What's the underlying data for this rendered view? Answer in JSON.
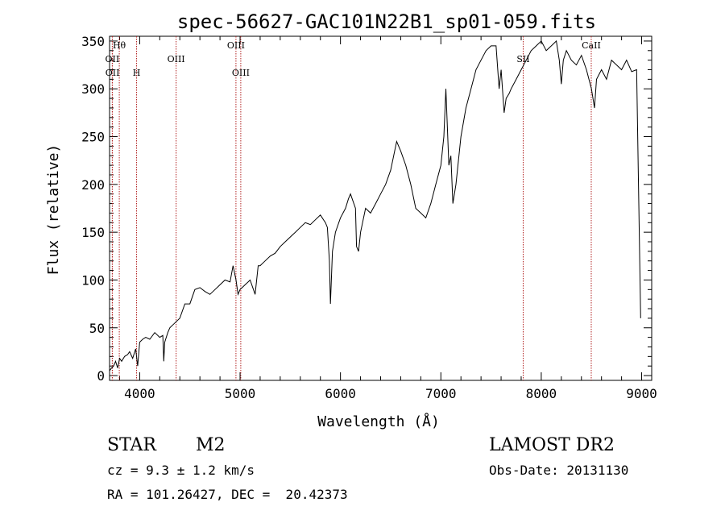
{
  "chart_data": {
    "type": "line",
    "title": "spec-56627-GAC101N22B1_sp01-059.fits",
    "xlabel": "Wavelength (Å)",
    "ylabel": "Flux (relative)",
    "xlim": [
      3700,
      9100
    ],
    "ylim": [
      -5,
      355
    ],
    "x_ticks": [
      4000,
      5000,
      6000,
      7000,
      8000,
      9000
    ],
    "y_ticks": [
      0,
      50,
      100,
      150,
      200,
      250,
      300,
      350
    ],
    "grid": false,
    "line_color": "#000000",
    "marker_color": "#b22222",
    "series": [
      {
        "x": [
          3700,
          3720,
          3740,
          3760,
          3780,
          3800,
          3820,
          3850,
          3880,
          3900,
          3930,
          3960,
          3980,
          4000,
          4030,
          4060,
          4100,
          4150,
          4200,
          4230,
          4240,
          4250,
          4280,
          4300,
          4350,
          4400,
          4450,
          4500,
          4550,
          4600,
          4650,
          4700,
          4750,
          4800,
          4850,
          4900,
          4930,
          4960,
          4980,
          5000,
          5050,
          5100,
          5150,
          5180,
          5200,
          5250,
          5300,
          5350,
          5400,
          5450,
          5500,
          5550,
          5600,
          5650,
          5700,
          5750,
          5800,
          5850,
          5870,
          5890,
          5900,
          5920,
          5950,
          6000,
          6050,
          6080,
          6100,
          6150,
          6160,
          6180,
          6200,
          6250,
          6300,
          6350,
          6400,
          6450,
          6500,
          6530,
          6560,
          6580,
          6600,
          6650,
          6700,
          6750,
          6800,
          6850,
          6900,
          6950,
          7000,
          7030,
          7050,
          7080,
          7100,
          7120,
          7150,
          7200,
          7250,
          7300,
          7350,
          7400,
          7450,
          7500,
          7550,
          7580,
          7600,
          7630,
          7650,
          7680,
          7700,
          7750,
          7800,
          7850,
          7900,
          7950,
          8000,
          8050,
          8100,
          8150,
          8180,
          8200,
          8220,
          8250,
          8300,
          8350,
          8400,
          8450,
          8500,
          8530,
          8550,
          8600,
          8650,
          8700,
          8750,
          8800,
          8850,
          8900,
          8950,
          8990
        ],
        "y": [
          5,
          8,
          10,
          15,
          8,
          18,
          15,
          20,
          22,
          25,
          18,
          28,
          10,
          35,
          38,
          40,
          38,
          45,
          40,
          42,
          15,
          35,
          45,
          50,
          55,
          60,
          75,
          75,
          90,
          92,
          88,
          85,
          90,
          95,
          100,
          98,
          115,
          100,
          85,
          90,
          95,
          100,
          85,
          115,
          115,
          120,
          125,
          128,
          135,
          140,
          145,
          150,
          155,
          160,
          158,
          163,
          168,
          160,
          155,
          120,
          75,
          130,
          150,
          165,
          175,
          185,
          190,
          175,
          135,
          130,
          150,
          175,
          170,
          180,
          190,
          200,
          215,
          230,
          245,
          240,
          235,
          220,
          200,
          175,
          170,
          165,
          180,
          200,
          220,
          250,
          300,
          220,
          230,
          180,
          200,
          250,
          280,
          300,
          320,
          330,
          340,
          345,
          345,
          300,
          320,
          275,
          290,
          295,
          300,
          310,
          320,
          330,
          340,
          345,
          350,
          340,
          345,
          350,
          330,
          305,
          330,
          340,
          330,
          325,
          335,
          320,
          300,
          280,
          310,
          320,
          310,
          330,
          325,
          320,
          330,
          318,
          320,
          60
        ]
      }
    ],
    "line_markers": [
      {
        "label": "Hθ",
        "x": 3797,
        "row": 0
      },
      {
        "label": "OII",
        "x": 3727,
        "row": 1
      },
      {
        "label": "OII",
        "x": 3729,
        "row": 2
      },
      {
        "label": "H",
        "x": 3969,
        "row": 2
      },
      {
        "label": "OIII",
        "x": 4363,
        "row": 1
      },
      {
        "label": "OIII",
        "x": 4959,
        "row": 0
      },
      {
        "label": "OIII",
        "x": 5007,
        "row": 2
      },
      {
        "label": "SII",
        "x": 7820,
        "row": 1
      },
      {
        "label": "CaII",
        "x": 8498,
        "row": 0
      }
    ]
  },
  "info": {
    "class": "STAR",
    "subclass": "M2",
    "survey": "LAMOST DR2",
    "cz": "cz = 9.3 ± 1.2 km/s",
    "obs_date": "Obs-Date: 20131130",
    "coords": "RA = 101.26427, DEC =  20.42373"
  }
}
